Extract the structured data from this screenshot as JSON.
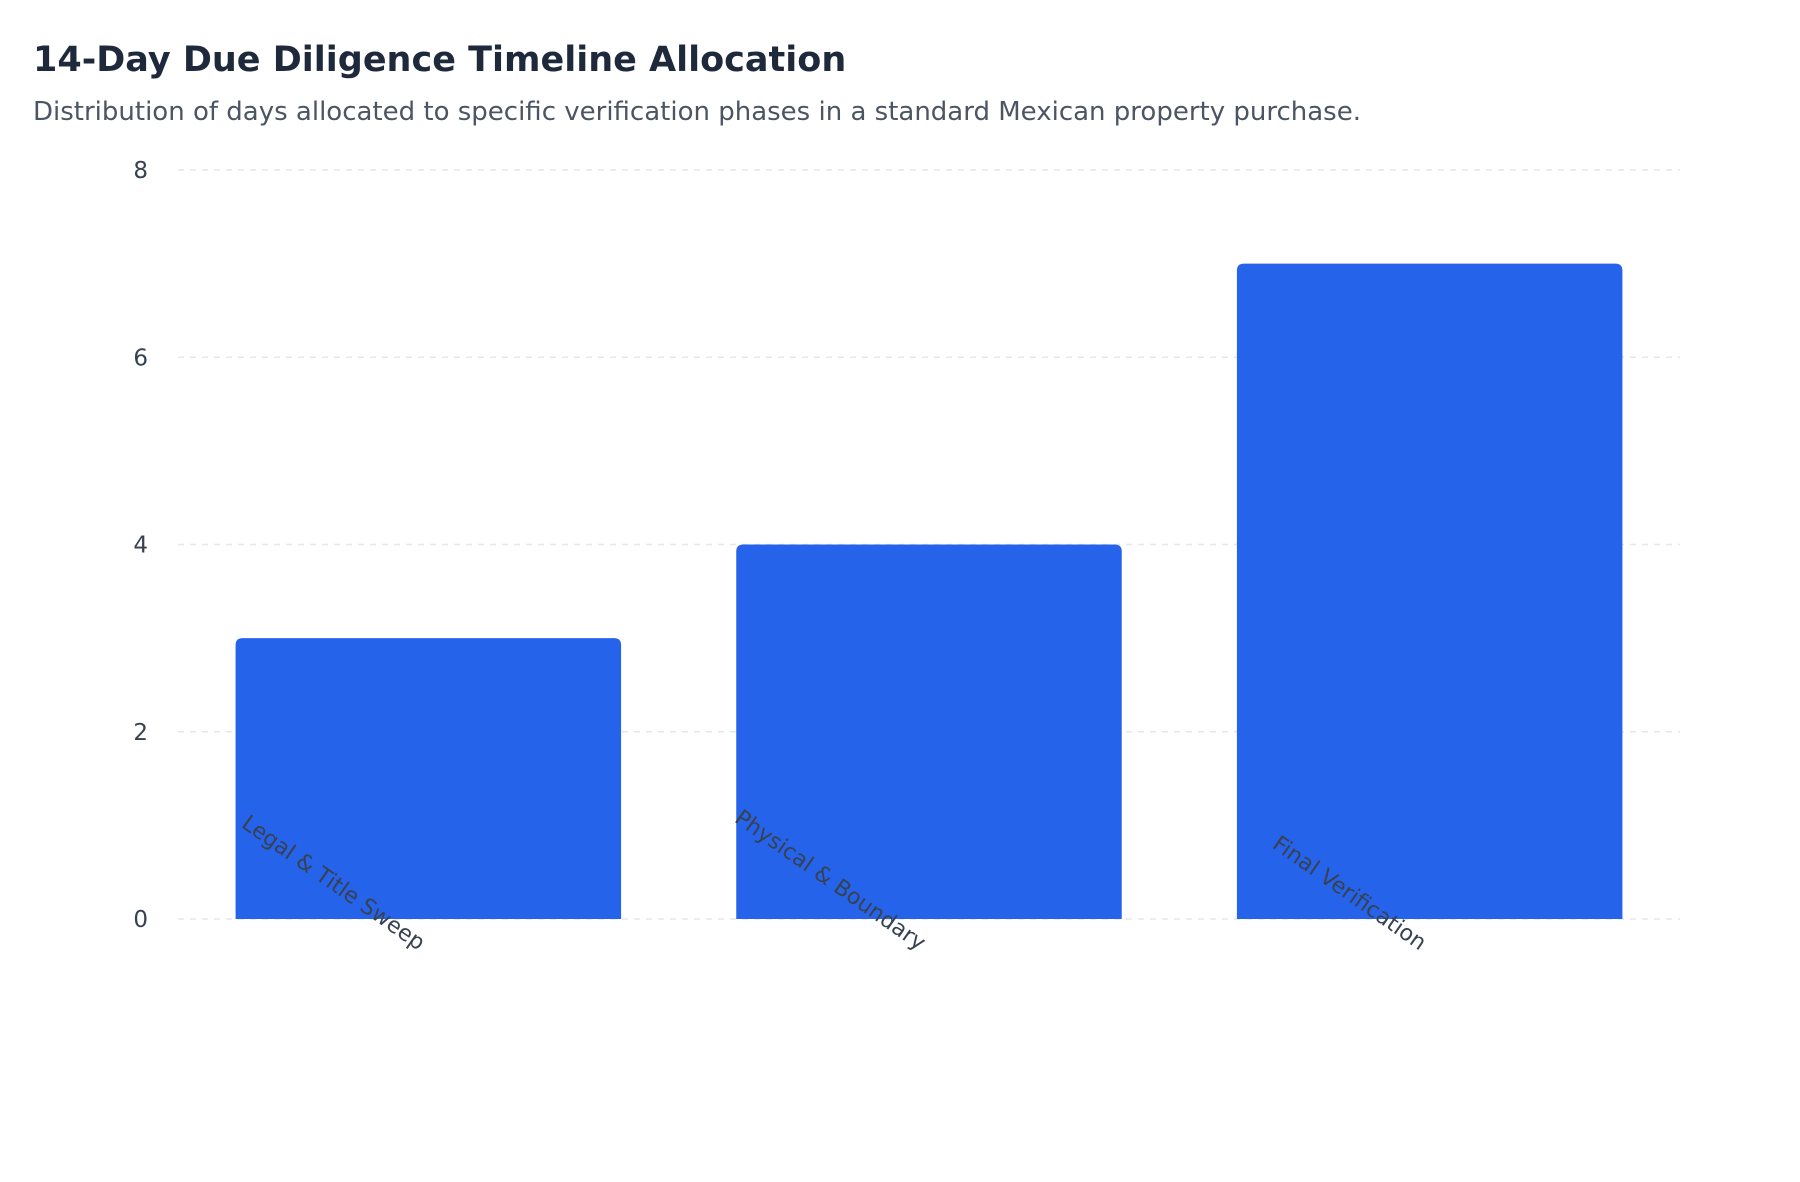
{
  "chart_data": {
    "type": "bar",
    "title": "14-Day Due Diligence Timeline Allocation",
    "subtitle": "Distribution of days allocated to specific verification phases in a standard Mexican property purchase.",
    "categories": [
      "Legal & Title Sweep",
      "Physical & Boundary",
      "Final Verification"
    ],
    "values": [
      3,
      4,
      7
    ],
    "ylim": [
      0,
      8
    ],
    "yticks": [
      0,
      2,
      4,
      6,
      8
    ],
    "xlabel": "",
    "ylabel": "",
    "grid": true,
    "legend": "none",
    "bar_color": "#2563eb",
    "grid_color": "#e5e7eb"
  }
}
